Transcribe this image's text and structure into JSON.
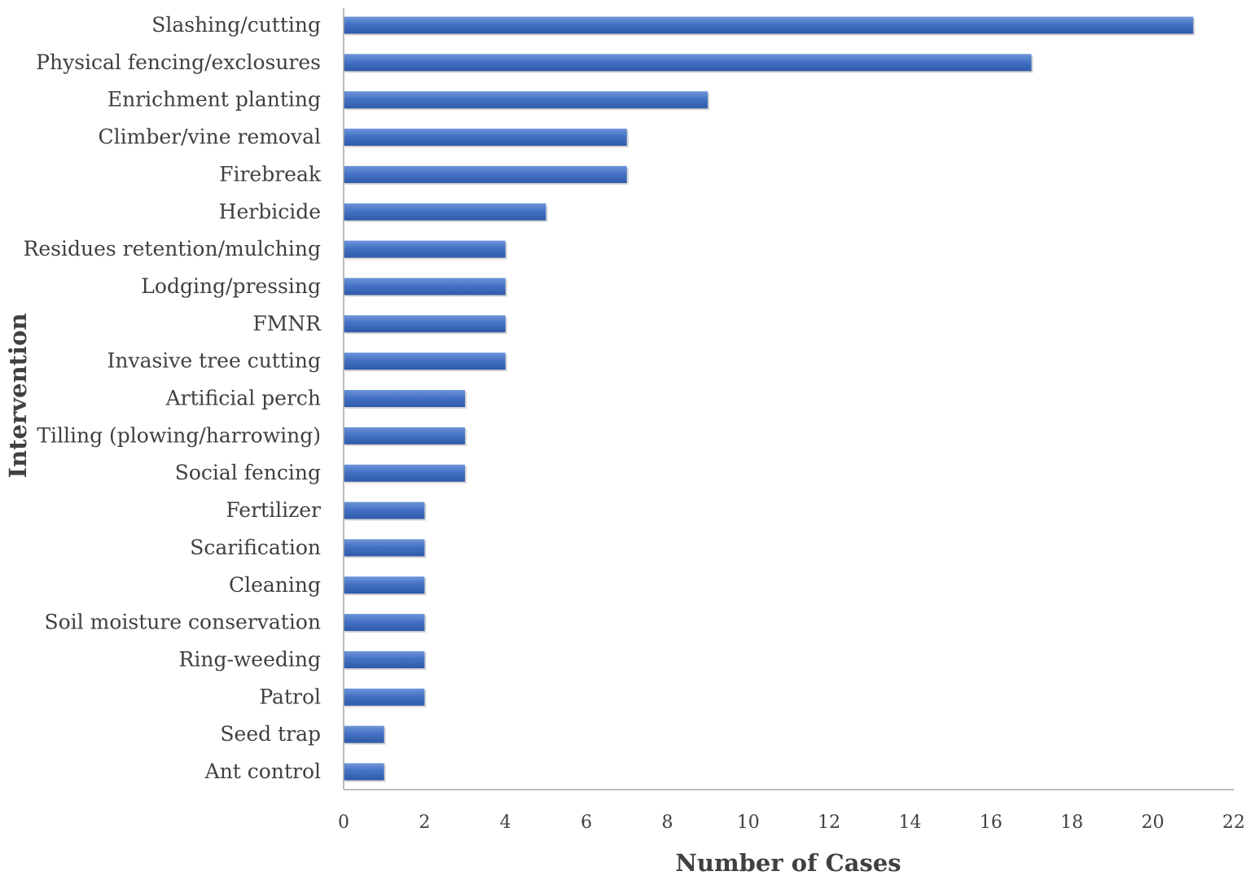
{
  "chart_data": {
    "type": "bar",
    "orientation": "horizontal",
    "title": "",
    "xlabel": "Number of Cases",
    "ylabel": "Intervention",
    "xlim": [
      0,
      22
    ],
    "x_ticks": [
      "0",
      "2",
      "4",
      "6",
      "8",
      "10",
      "12",
      "14",
      "16",
      "18",
      "20",
      "22"
    ],
    "grid": false,
    "legend": "none",
    "bar_color": "#4472C4",
    "categories": [
      "Slashing/cutting",
      "Physical fencing/exclosures",
      "Enrichment planting",
      "Climber/vine removal",
      "Firebreak",
      "Herbicide",
      "Residues retention/mulching",
      "Lodging/pressing",
      "FMNR",
      "Invasive tree cutting",
      "Artificial perch",
      "Tilling (plowing/harrowing)",
      "Social fencing",
      "Fertilizer",
      "Scarification",
      "Cleaning",
      "Soil moisture conservation",
      "Ring-weeding",
      "Patrol",
      "Seed trap",
      "Ant control"
    ],
    "values": [
      21,
      17,
      9,
      7,
      7,
      5,
      4,
      4,
      4,
      4,
      3,
      3,
      3,
      2,
      2,
      2,
      2,
      2,
      2,
      1,
      1
    ]
  }
}
